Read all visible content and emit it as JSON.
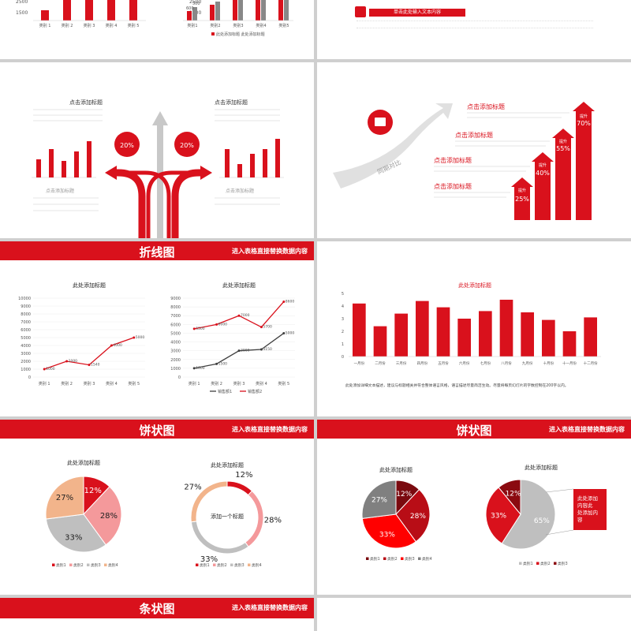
{
  "colors": {
    "red": "#d9111c",
    "pink": "#f4999b",
    "peach": "#f2b48b",
    "gray": "#bfbfbf",
    "dark": "#3f3f3f"
  },
  "s1": {
    "ytick_top": "2500",
    "ytick_bot": "1500",
    "cats": [
      "类别 1",
      "类别 2",
      "类别 3",
      "类别 4",
      "类别 5"
    ]
  },
  "s2": {
    "ytick_top": "2500",
    "ytick_bot": "1500",
    "labels": [
      "600",
      "500"
    ],
    "cats": [
      "类别1",
      "类别2",
      "类别3",
      "类别4",
      "类别5"
    ],
    "legend": "此处添加标题  此处添加标题"
  },
  "s3": {
    "banner": "单击此处输入文本内容"
  },
  "s4": {
    "title_left": "点击添加标题",
    "title_right": "点击添加标题",
    "badge_left": "20%",
    "badge_right": "20%",
    "bottom_left": "点击添加标题",
    "bottom_right": "点击添加标题"
  },
  "s5": {
    "arrow_text": "同期对比",
    "items": [
      "点击添加标题",
      "点击添加标题",
      "点击添加标题",
      "点击添加标题"
    ],
    "bars": [
      {
        "value": "25%",
        "tag": "提升"
      },
      {
        "value": "40%",
        "tag": "提升"
      },
      {
        "value": "55%",
        "tag": "提升"
      },
      {
        "value": "70%",
        "tag": "提升"
      }
    ]
  },
  "line_section": {
    "title": "折线图",
    "subtitle": "进入表格直接替换数据内容"
  },
  "line1": {
    "title": "此处添加标题",
    "cats": [
      "类别 1",
      "类别 2",
      "类别 3",
      "类别 4",
      "类别 5"
    ],
    "values": [
      1000,
      2000,
      1540,
      4000,
      5000
    ],
    "ylim": [
      0,
      10000
    ],
    "yticks": [
      "0",
      "1000",
      "2000",
      "3000",
      "4000",
      "5000",
      "6000",
      "7000",
      "8000",
      "9000",
      "10000"
    ]
  },
  "line2": {
    "title": "此处添加标题",
    "cats": [
      "类别 1",
      "类别 2",
      "类别 3",
      "类别 4",
      "类别 5"
    ],
    "series": [
      {
        "name": "销售额1",
        "values": [
          1000,
          1500,
          3000,
          3150,
          5000
        ]
      },
      {
        "name": "销售额2",
        "values": [
          5500,
          6000,
          7000,
          5700,
          8600
        ]
      }
    ],
    "ylim": [
      0,
      9000
    ],
    "yticks": [
      "0",
      "1000",
      "2000",
      "3000",
      "4000",
      "5000",
      "6000",
      "7000",
      "8000",
      "9000"
    ]
  },
  "bar12": {
    "title": "此处添加标题",
    "cats": [
      "一月份",
      "二月份",
      "三月份",
      "四月份",
      "五月份",
      "六月份",
      "七月份",
      "八月份",
      "九月份",
      "十月份",
      "十一月份",
      "十二月份"
    ],
    "values": [
      4.2,
      2.4,
      3.4,
      4.4,
      3.9,
      3.0,
      3.6,
      4.5,
      3.5,
      2.9,
      2.0,
      3.1
    ],
    "yticks": [
      "0",
      "1",
      "2",
      "3",
      "4",
      "5"
    ],
    "note": "此处添加详细文本描述，建议与标题相关并符合整体语言风格，语言描述尽量简洁生动。尽量将每页幻灯片的字数控制在200字以内。"
  },
  "pie_section_a": {
    "title": "饼状图",
    "subtitle": "进入表格直接替换数据内容"
  },
  "pie_section_b": {
    "title": "饼状图",
    "subtitle": "进入表格直接替换数据内容"
  },
  "pie1": {
    "title": "此处添加标题",
    "labels": [
      "12%",
      "28%",
      "33%",
      "27%"
    ],
    "values": [
      12,
      28,
      33,
      27
    ],
    "legend": [
      "类别1",
      "类别2",
      "类别3",
      "类别4"
    ]
  },
  "pie2": {
    "title": "此处添加标题",
    "center": "添加一个标题",
    "labels": [
      "12%",
      "28%",
      "33%",
      "27%"
    ],
    "values": [
      12,
      28,
      33,
      27
    ],
    "legend": [
      "类别1",
      "类别2",
      "类别3",
      "类别4"
    ]
  },
  "pie3": {
    "title": "此处添加标题",
    "labels": [
      "12%",
      "28%",
      "33%",
      "27%"
    ],
    "values": [
      12,
      28,
      33,
      27
    ],
    "legend": [
      "类别1",
      "类别2",
      "类别3",
      "类别4"
    ]
  },
  "pie4": {
    "title": "此处添加标题",
    "labels": [
      "65%",
      "33%",
      "12%"
    ],
    "values": [
      65,
      33,
      12
    ],
    "legend": [
      "类别1",
      "类别2",
      "类别3"
    ],
    "callout": "此处添加内容此处添加内容"
  },
  "bar_section": {
    "title": "条状图",
    "subtitle": "进入表格直接替换数据内容"
  }
}
